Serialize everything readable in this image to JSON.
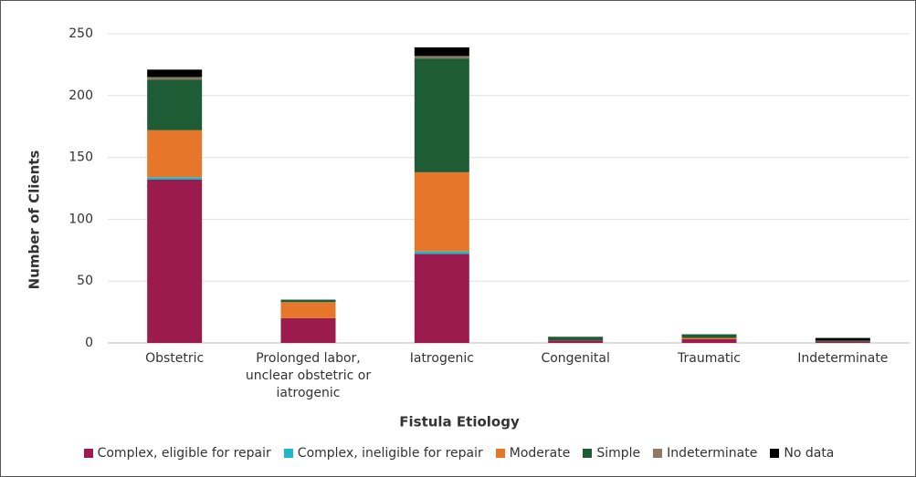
{
  "chart_data": {
    "type": "stacked_bar",
    "y_label": "Number of Clients",
    "x_label": "Fistula Etiology",
    "categories": [
      "Obstetric",
      "Prolonged labor, unclear obstetric or iatrogenic",
      "Iatrogenic",
      "Congenital",
      "Traumatic",
      "Indeterminate"
    ],
    "series": [
      {
        "name": "Complex, eligible for repair",
        "color": "#9b1b4f",
        "values": [
          132,
          20,
          72,
          2,
          3,
          1
        ]
      },
      {
        "name": "Complex, ineligible for repair",
        "color": "#1fb8c8",
        "values": [
          2,
          0,
          2,
          0,
          0,
          0
        ]
      },
      {
        "name": "Moderate",
        "color": "#e6772a",
        "values": [
          38,
          13,
          64,
          0,
          1,
          0
        ]
      },
      {
        "name": "Simple",
        "color": "#1e5c36",
        "values": [
          41,
          2,
          92,
          3,
          3,
          1
        ]
      },
      {
        "name": "Indeterminate",
        "color": "#8c7b63",
        "values": [
          2,
          0,
          2,
          0,
          0,
          0
        ]
      },
      {
        "name": "No data",
        "color": "#000000",
        "values": [
          6,
          0,
          7,
          0,
          0,
          2
        ]
      }
    ],
    "ylim": [
      0,
      250
    ],
    "yticks": [
      0,
      50,
      100,
      150,
      200,
      250
    ],
    "grid": true,
    "legend": "bottom"
  }
}
